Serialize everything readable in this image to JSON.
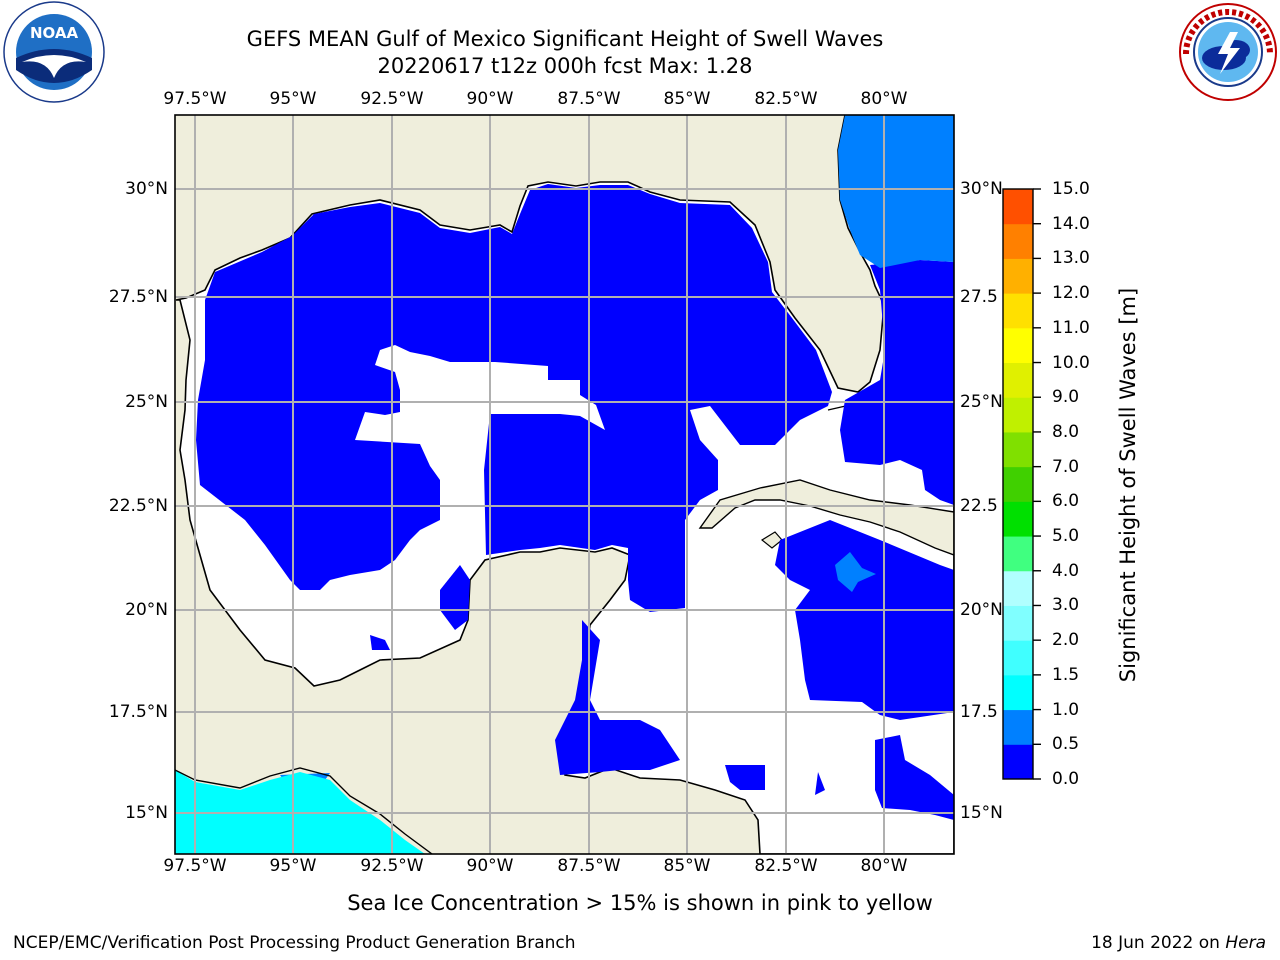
{
  "header": {
    "title_line1": "GEFS MEAN Gulf of Mexico Significant Height of Swell Waves",
    "title_line2": "20220617 t12z 000h fcst   Max: 1.28"
  },
  "logos": {
    "left": {
      "name": "noaa-logo",
      "text": "NOAA",
      "ring_text": "NATIONAL OCEANIC AND ATMOSPHERIC ADMINISTRATION · U.S. DEPARTMENT OF COMMERCE"
    },
    "right": {
      "name": "nws-logo",
      "ring_text": "NATIONAL WEATHER SERVICE"
    }
  },
  "map": {
    "lon_ticks": [
      "97.5°W",
      "95°W",
      "92.5°W",
      "90°W",
      "87.5°W",
      "85°W",
      "82.5°W",
      "80°W"
    ],
    "lat_ticks_left": [
      "30°N",
      "27.5°N",
      "25°N",
      "22.5°N",
      "20°N",
      "17.5°N",
      "15°N"
    ],
    "lat_ticks_right": [
      "30°N",
      "27.5",
      "25°N",
      "22.5",
      "20°N",
      "17.5",
      "15°N"
    ],
    "colors": {
      "land": "#efeedc",
      "swell_low": "#0000ff",
      "swell_mid": "#0080ff",
      "swell_cyan": "#00ffff",
      "grid": "#b0b0b0"
    }
  },
  "colorbar": {
    "label": "Significant Height of Swell Waves [m]",
    "ticks": [
      "15.0",
      "14.0",
      "13.0",
      "12.0",
      "11.0",
      "10.0",
      "9.0",
      "8.0",
      "7.0",
      "6.0",
      "5.0",
      "4.0",
      "3.0",
      "2.0",
      "1.5",
      "1.0",
      "0.5",
      "0.0"
    ],
    "colors": [
      "#0000ff",
      "#0080ff",
      "#00ffff",
      "#40ffff",
      "#80ffff",
      "#b0ffff",
      "#40ff80",
      "#00e000",
      "#40d000",
      "#80e000",
      "#c0f000",
      "#e0f000",
      "#ffff00",
      "#ffe000",
      "#ffb000",
      "#ff8000",
      "#ff5000",
      "#ff2000",
      "#ff0000"
    ]
  },
  "footer": {
    "note": "Sea Ice Concentration > 15% is shown in pink to yellow",
    "credit": "NCEP/EMC/Verification Post Processing Product Generation Branch",
    "date_prefix": "18 Jun 2022 on ",
    "date_host": "Hera"
  }
}
